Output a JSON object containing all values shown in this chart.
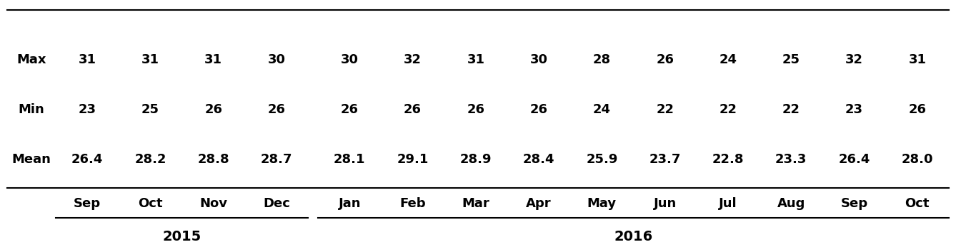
{
  "year_2015_cols": [
    "Sep",
    "Oct",
    "Nov",
    "Dec"
  ],
  "year_2016_cols": [
    "Jan",
    "Feb",
    "Mar",
    "Apr",
    "May",
    "Jun",
    "Jul",
    "Aug",
    "Sep",
    "Oct"
  ],
  "row_labels": [
    "Mean",
    "Min",
    "Max"
  ],
  "mean_values": [
    "26.4",
    "28.2",
    "28.8",
    "28.7",
    "28.1",
    "29.1",
    "28.9",
    "28.4",
    "25.9",
    "23.7",
    "22.8",
    "23.3",
    "26.4",
    "28.0"
  ],
  "min_values": [
    "23",
    "25",
    "26",
    "26",
    "26",
    "26",
    "26",
    "26",
    "24",
    "22",
    "22",
    "22",
    "23",
    "26"
  ],
  "max_values": [
    "31",
    "31",
    "31",
    "30",
    "30",
    "32",
    "31",
    "30",
    "28",
    "26",
    "24",
    "25",
    "32",
    "31"
  ],
  "bg_color": "#ffffff",
  "text_color": "#000000",
  "font_size": 13,
  "header_font_size": 13,
  "year_font_size": 14,
  "fig_width": 13.38,
  "fig_height": 3.54,
  "dpi": 100
}
